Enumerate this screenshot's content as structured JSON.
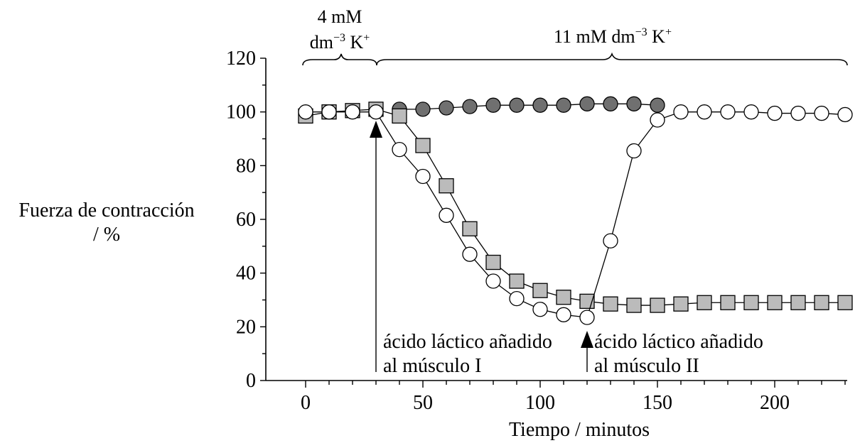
{
  "chart_data": {
    "type": "scatter",
    "xlabel": "Tiempo / minutos",
    "ylabel_line1": "Fuerza de contracción",
    "ylabel_line2": "/ %",
    "xlim": [
      0,
      232
    ],
    "ylim": [
      0,
      120
    ],
    "xticks": [
      0,
      50,
      100,
      150,
      200
    ],
    "yticks": [
      0,
      20,
      40,
      60,
      80,
      100,
      120
    ],
    "grid": false,
    "bracket_labels": {
      "k4_line1": "4 mM",
      "k4_line2_prefix": "dm",
      "k4_line2_sup1": "−3",
      "k4_line2_main": " K",
      "k4_line2_sup2": "+",
      "k11_prefix": "11 mM dm",
      "k11_sup1": "−3",
      "k11_main": " K",
      "k11_sup2": "+"
    },
    "annotations": {
      "arrow1_line1": "ácido láctico añadido",
      "arrow1_line2": "al músculo I",
      "arrow1_x": 30,
      "arrow2_line1": "ácido láctico añadido",
      "arrow2_line2": "al músculo II",
      "arrow2_x": 120
    },
    "series": [
      {
        "marker": "circle-dark",
        "color": "#707070",
        "points": [
          [
            40,
            101
          ],
          [
            50,
            101
          ],
          [
            60,
            101.5
          ],
          [
            70,
            102
          ],
          [
            80,
            102.5
          ],
          [
            90,
            102.5
          ],
          [
            100,
            102.5
          ],
          [
            110,
            102.5
          ],
          [
            120,
            103
          ],
          [
            130,
            103
          ],
          [
            140,
            103
          ],
          [
            150,
            102.5
          ]
        ]
      },
      {
        "marker": "square-gray",
        "color": "#bbbbbb",
        "points": [
          [
            0,
            98.5
          ],
          [
            10,
            100
          ],
          [
            20,
            100.5
          ],
          [
            30,
            101
          ],
          [
            40,
            98.5
          ],
          [
            50,
            87.5
          ],
          [
            60,
            72.5
          ],
          [
            70,
            56.5
          ],
          [
            80,
            44
          ],
          [
            90,
            37
          ],
          [
            100,
            33.5
          ],
          [
            110,
            31
          ],
          [
            120,
            29.5
          ],
          [
            130,
            28.5
          ],
          [
            140,
            28
          ],
          [
            150,
            28
          ],
          [
            160,
            28.5
          ],
          [
            170,
            29
          ],
          [
            180,
            29
          ],
          [
            190,
            29
          ],
          [
            200,
            29
          ],
          [
            210,
            29
          ],
          [
            220,
            29
          ],
          [
            230,
            29
          ]
        ]
      },
      {
        "marker": "circle-white",
        "color": "#ffffff",
        "points": [
          [
            0,
            100
          ],
          [
            10,
            100
          ],
          [
            20,
            100
          ],
          [
            30,
            100
          ],
          [
            40,
            86
          ],
          [
            50,
            76
          ],
          [
            60,
            61.5
          ],
          [
            70,
            47
          ],
          [
            80,
            37
          ],
          [
            90,
            30.5
          ],
          [
            100,
            26.5
          ],
          [
            110,
            24.5
          ],
          [
            120,
            23.5
          ],
          [
            130,
            52
          ],
          [
            140,
            85.5
          ],
          [
            150,
            97
          ],
          [
            160,
            100
          ],
          [
            170,
            100
          ],
          [
            180,
            100
          ],
          [
            190,
            100
          ],
          [
            200,
            99.5
          ],
          [
            210,
            99.5
          ],
          [
            220,
            99.5
          ],
          [
            230,
            99
          ]
        ]
      }
    ]
  }
}
